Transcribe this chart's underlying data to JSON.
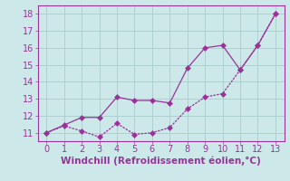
{
  "x": [
    0,
    1,
    2,
    3,
    4,
    5,
    6,
    7,
    8,
    9,
    10,
    11,
    12,
    13
  ],
  "line1": [
    11.0,
    11.45,
    11.9,
    11.9,
    13.1,
    12.9,
    12.9,
    12.75,
    14.8,
    16.0,
    16.15,
    14.7,
    16.15,
    18.0
  ],
  "line2": [
    11.0,
    11.4,
    11.1,
    10.75,
    11.55,
    10.9,
    11.0,
    11.3,
    12.4,
    13.1,
    13.3,
    14.7,
    16.15,
    18.0
  ],
  "color": "#993399",
  "bg_color": "#cce8e8",
  "grid_color": "#aacccc",
  "xlabel": "Windchill (Refroidissement éolien,°C)",
  "ylim": [
    10.5,
    18.5
  ],
  "xlim": [
    -0.5,
    13.5
  ],
  "yticks": [
    11,
    12,
    13,
    14,
    15,
    16,
    17,
    18
  ],
  "xticks": [
    0,
    1,
    2,
    3,
    4,
    5,
    6,
    7,
    8,
    9,
    10,
    11,
    12,
    13
  ],
  "xlabel_color": "#993399",
  "xlabel_fontsize": 7.5,
  "tick_fontsize": 7,
  "markersize": 3,
  "linewidth": 0.9
}
